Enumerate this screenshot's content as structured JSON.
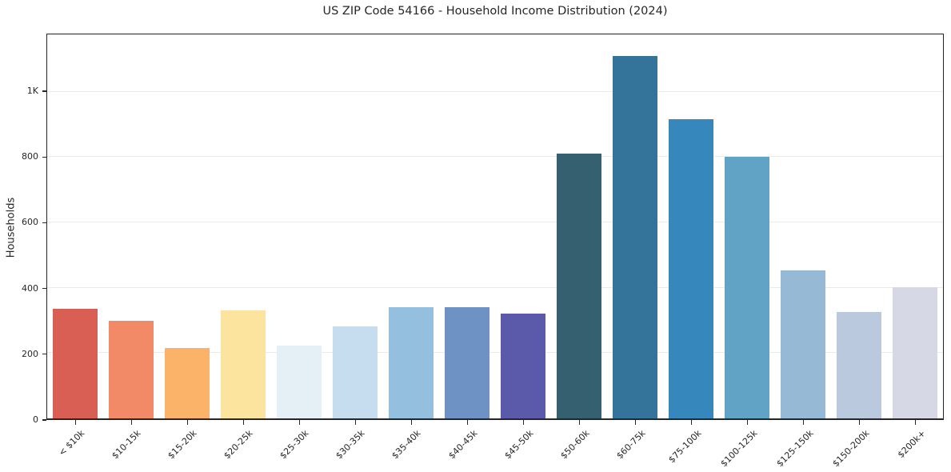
{
  "figure": {
    "background": "#ffffff",
    "spine_color": "#262626",
    "grid_color": "#ebebeb",
    "text_color": "#262626"
  },
  "chart_data": {
    "type": "bar",
    "title": "US ZIP Code 54166 - Household Income Distribution (2024)",
    "xlabel": "",
    "ylabel": "Households",
    "categories": [
      "< $10k",
      "$10-15k",
      "$15-20k",
      "$20-25k",
      "$25-30k",
      "$30-35k",
      "$35-40k",
      "$40-45k",
      "$45-50k",
      "$50-60k",
      "$60-75k",
      "$75-100k",
      "$100-125k",
      "$125-150k",
      "$150-200k",
      "$200k+"
    ],
    "values": [
      335,
      298,
      215,
      330,
      222,
      282,
      340,
      341,
      320,
      810,
      1108,
      915,
      800,
      452,
      326,
      402
    ],
    "bar_colors": [
      "#d95f55",
      "#f28a68",
      "#fbb269",
      "#fde49e",
      "#e4eff6",
      "#c5ddee",
      "#94bfde",
      "#6e92c4",
      "#5b59a9",
      "#35606f",
      "#35749a",
      "#3587bc",
      "#60a3c5",
      "#96bad5",
      "#bac9dd",
      "#d6d9e5"
    ],
    "ylim": [
      0,
      1175
    ],
    "yticks": [
      {
        "value": 0,
        "label": "0"
      },
      {
        "value": 200,
        "label": "200"
      },
      {
        "value": 400,
        "label": "400"
      },
      {
        "value": 600,
        "label": "600"
      },
      {
        "value": 800,
        "label": "800"
      },
      {
        "value": 1000,
        "label": "1K"
      }
    ],
    "grid": "horizontal",
    "legend_position": "none",
    "bar_width_fraction": 0.79,
    "xtick_label_rotation_deg": 45
  }
}
